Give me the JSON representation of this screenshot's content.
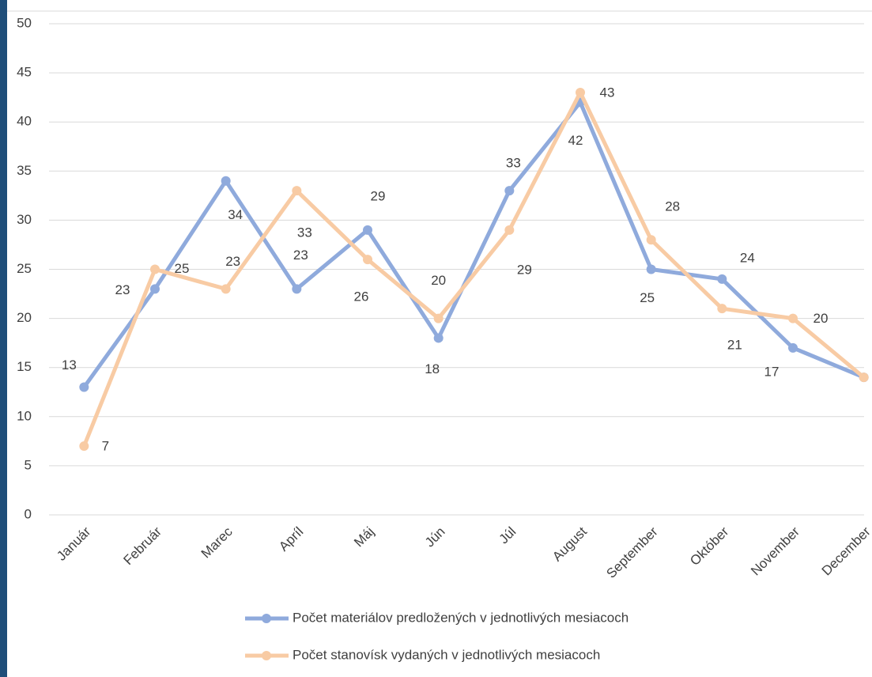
{
  "chart_data": {
    "type": "line",
    "categories": [
      "Január",
      "Február",
      "Marec",
      "Apríl",
      "Máj",
      "Jún",
      "Júl",
      "August",
      "September",
      "Október",
      "November",
      "December"
    ],
    "series": [
      {
        "name": "Počet materiálov predložených v jednotlivých mesiacoch",
        "color": "#8faadc",
        "values": [
          13,
          23,
          34,
          23,
          29,
          18,
          33,
          42,
          25,
          24,
          17,
          14
        ],
        "value_labels": [
          "13",
          "23",
          "34",
          "23",
          "29",
          "18",
          "33",
          "42",
          "25",
          "24",
          "17",
          null
        ]
      },
      {
        "name": "Počet stanovísk vydaných v jednotlivých mesiacoch",
        "color": "#f8cba4",
        "values": [
          7,
          25,
          23,
          33,
          26,
          20,
          29,
          43,
          28,
          21,
          20,
          14
        ],
        "value_labels": [
          "7",
          "25",
          "23",
          "33",
          "26",
          "20",
          "29",
          "43",
          "28",
          "21",
          "20",
          null
        ]
      }
    ],
    "ylim": [
      0,
      50
    ],
    "yticks": [
      0,
      5,
      10,
      15,
      20,
      25,
      30,
      35,
      40,
      45,
      50
    ],
    "grid": true,
    "legend": "bottom"
  }
}
